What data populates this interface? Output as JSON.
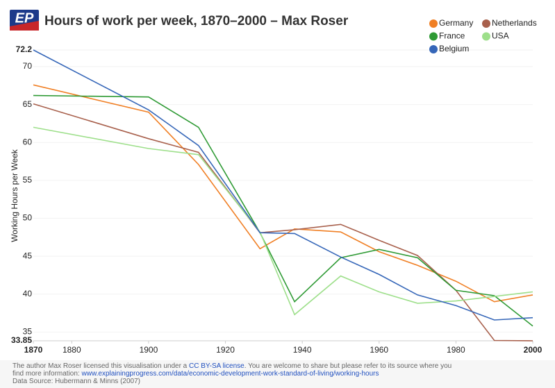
{
  "logo": "EP",
  "chart_data": {
    "type": "line",
    "title": "Hours of work per week, 1870–2000 – Max Roser",
    "y_label": "Working Hours per Week",
    "x": [
      1870,
      1900,
      1913,
      1929,
      1938,
      1950,
      1960,
      1970,
      1980,
      1990,
      2000
    ],
    "series": [
      {
        "name": "Germany",
        "color": "#f07f24",
        "values": [
          67.6,
          64.0,
          57.1,
          46.0,
          48.6,
          48.2,
          45.6,
          43.8,
          41.7,
          39.0,
          39.9
        ]
      },
      {
        "name": "Netherlands",
        "color": "#a8604c",
        "values": [
          65.1,
          60.5,
          58.7,
          48.1,
          48.5,
          49.2,
          47.1,
          45.1,
          40.5,
          33.9,
          33.85
        ]
      },
      {
        "name": "France",
        "color": "#2e9a34",
        "values": [
          66.2,
          66.0,
          62.0,
          48.1,
          39.0,
          44.8,
          45.9,
          44.8,
          40.5,
          39.8,
          35.8
        ]
      },
      {
        "name": "USA",
        "color": "#9ddf8a",
        "values": [
          62.0,
          59.2,
          58.4,
          48.2,
          37.3,
          42.4,
          40.3,
          38.8,
          39.1,
          39.7,
          40.3
        ]
      },
      {
        "name": "Belgium",
        "color": "#3566b8",
        "values": [
          72.2,
          64.3,
          59.6,
          48.1,
          48.0,
          44.9,
          42.6,
          39.9,
          38.5,
          36.6,
          36.9
        ]
      }
    ],
    "xlim": [
      1870,
      2000
    ],
    "xticks": [
      1870,
      1880,
      1900,
      1920,
      1940,
      1960,
      1980,
      2000
    ],
    "ylim": [
      33.85,
      72.2
    ],
    "yticks": [
      33.85,
      35,
      40,
      45,
      50,
      55,
      60,
      65,
      70,
      72.2
    ],
    "grid": true
  },
  "footer": {
    "line1_a": "The author Max Roser licensed this visualisation under a ",
    "line1_link": "CC BY-SA license",
    "line1_b": ". You are welcome to share but please refer to its source where you",
    "line2_a": "find more information: ",
    "line2_link": "www.explainingprogress.com/data/economic-development-work-standard-of-living/working-hours",
    "line3": "Data Source: Hubermann & Minns (2007)"
  }
}
